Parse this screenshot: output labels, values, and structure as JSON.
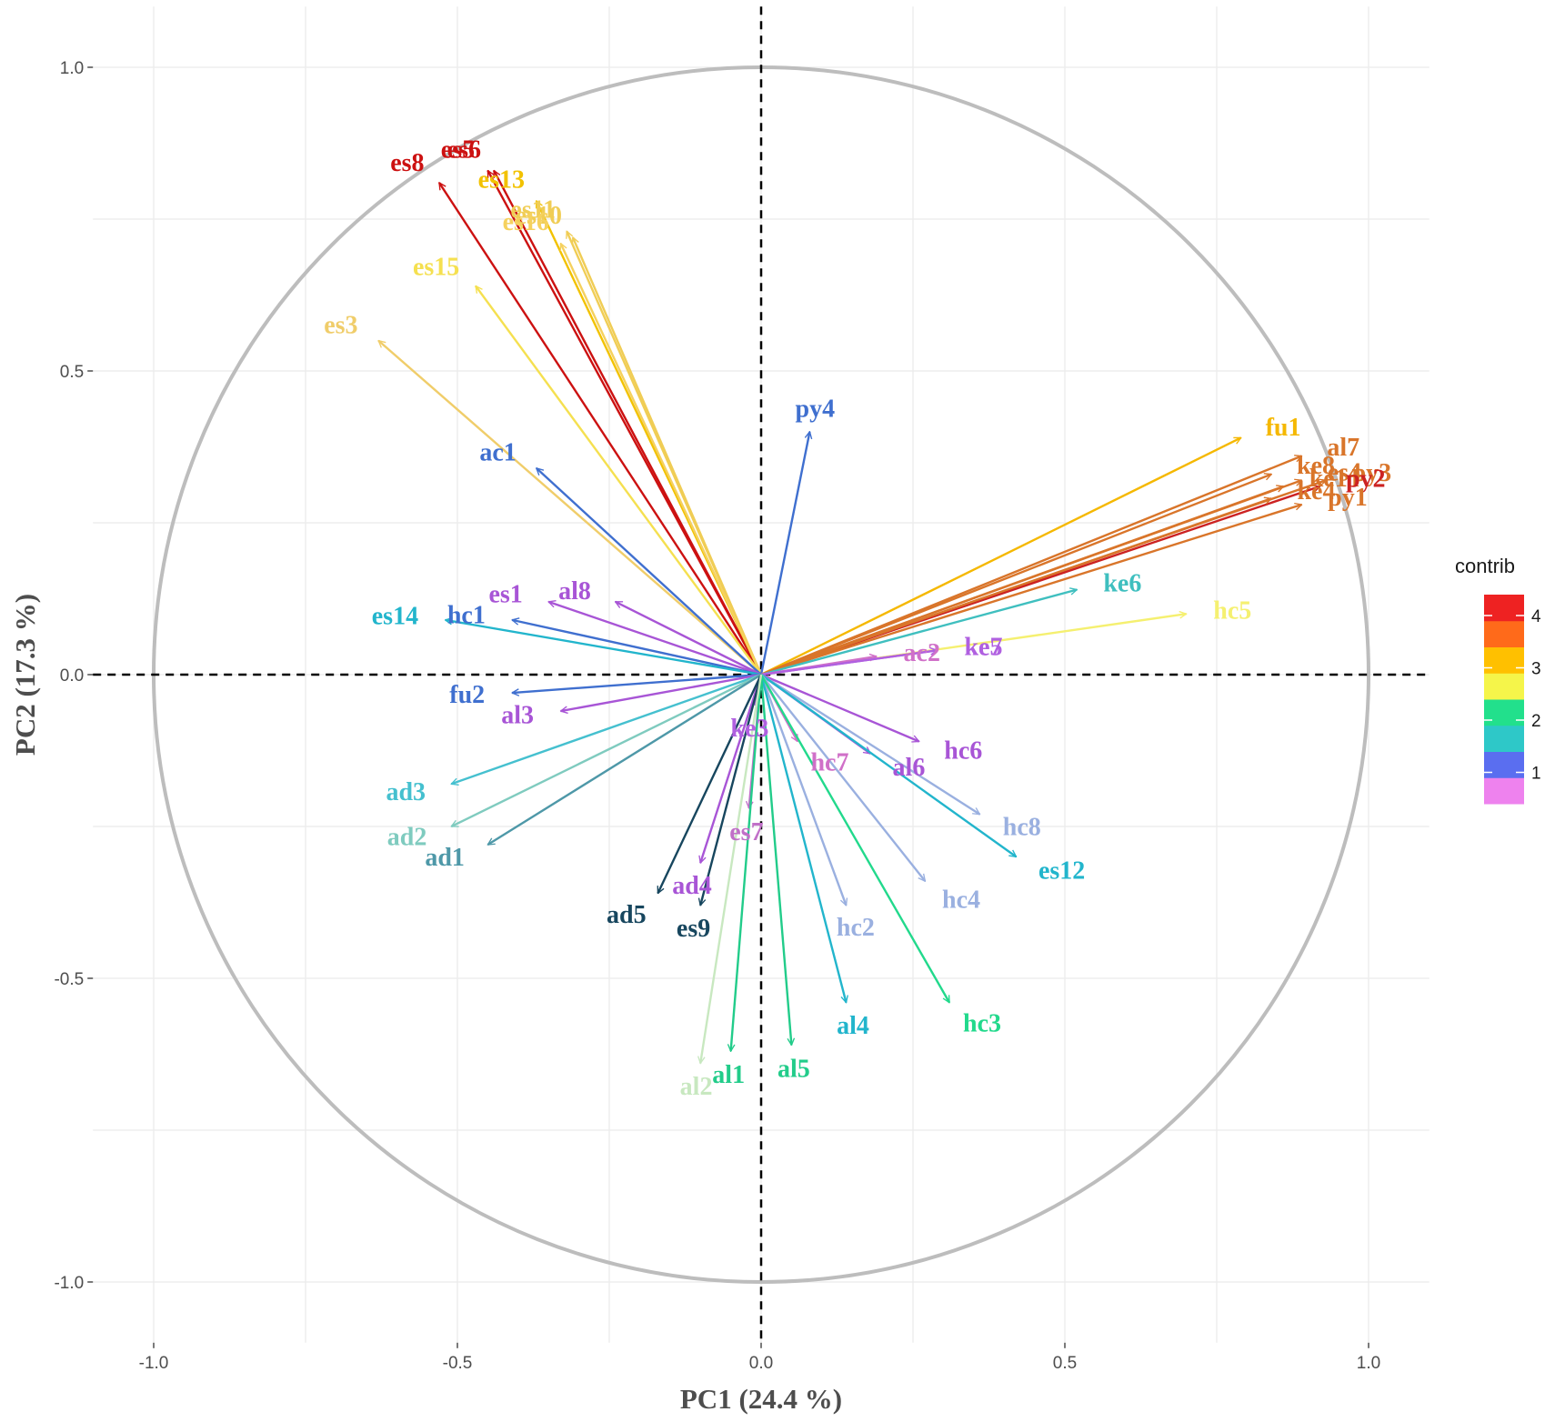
{
  "chart_data": {
    "type": "pca_correlation_circle",
    "xlabel": "PC1 (24.4 %)",
    "ylabel": "PC2 (17.3 %)",
    "xlim": [
      -1.1,
      1.1
    ],
    "ylim": [
      -1.1,
      1.1
    ],
    "x_ticks": [
      -1.0,
      -0.5,
      0.0,
      0.5,
      1.0
    ],
    "y_ticks": [
      -1.0,
      -0.5,
      0.0,
      0.5,
      1.0
    ],
    "x_tick_labels": [
      "-1.0",
      "-0.5",
      "0.0",
      "0.5",
      "1.0"
    ],
    "y_tick_labels": [
      "-1.0",
      "-0.5",
      "0.0",
      "0.5",
      "1.0"
    ],
    "grid": true,
    "legend": {
      "title": "contrib",
      "position": "right",
      "range": [
        0.4,
        4.4
      ],
      "ticks": [
        1,
        2,
        3,
        4
      ],
      "tick_labels": [
        "1",
        "2",
        "3",
        "4"
      ],
      "palette": [
        "#ee82ee",
        "#5a6ef0",
        "#2ec8c8",
        "#22e08c",
        "#f5f54a",
        "#ffc000",
        "#ff6a1a",
        "#ee2222"
      ]
    },
    "variables": [
      {
        "name": "es8",
        "x": -0.53,
        "y": 0.81,
        "color": "#cc1111"
      },
      {
        "name": "es5",
        "x": -0.45,
        "y": 0.83,
        "color": "#cc1111"
      },
      {
        "name": "es6",
        "x": -0.44,
        "y": 0.83,
        "color": "#cc1111"
      },
      {
        "name": "es13",
        "x": -0.37,
        "y": 0.78,
        "color": "#f2c200"
      },
      {
        "name": "es11",
        "x": -0.32,
        "y": 0.73,
        "color": "#f0cd55"
      },
      {
        "name": "es10",
        "x": -0.31,
        "y": 0.72,
        "color": "#f0cd55"
      },
      {
        "name": "es16",
        "x": -0.33,
        "y": 0.71,
        "color": "#f5d15e"
      },
      {
        "name": "es15",
        "x": -0.47,
        "y": 0.64,
        "color": "#f5e050"
      },
      {
        "name": "es3",
        "x": -0.63,
        "y": 0.55,
        "color": "#f0cd6a"
      },
      {
        "name": "py4",
        "x": 0.08,
        "y": 0.4,
        "color": "#3f6fcf"
      },
      {
        "name": "ac1",
        "x": -0.37,
        "y": 0.34,
        "color": "#3f6fcf"
      },
      {
        "name": "fu1",
        "x": 0.79,
        "y": 0.39,
        "color": "#f5b800"
      },
      {
        "name": "al7",
        "x": 0.89,
        "y": 0.36,
        "color": "#d9752a"
      },
      {
        "name": "ke8",
        "x": 0.84,
        "y": 0.33,
        "color": "#d9752a"
      },
      {
        "name": "es4",
        "x": 0.89,
        "y": 0.32,
        "color": "#d9752a"
      },
      {
        "name": "ke1",
        "x": 0.86,
        "y": 0.31,
        "color": "#d9752a"
      },
      {
        "name": "py3",
        "x": 0.93,
        "y": 0.32,
        "color": "#d9752a"
      },
      {
        "name": "py2",
        "x": 0.92,
        "y": 0.31,
        "color": "#cc2222"
      },
      {
        "name": "ke4",
        "x": 0.84,
        "y": 0.29,
        "color": "#d9752a"
      },
      {
        "name": "py1",
        "x": 0.89,
        "y": 0.28,
        "color": "#d9752a"
      },
      {
        "name": "ke6",
        "x": 0.52,
        "y": 0.14,
        "color": "#3fbfbf"
      },
      {
        "name": "hc5",
        "x": 0.7,
        "y": 0.1,
        "color": "#f5f070"
      },
      {
        "name": "es1",
        "x": -0.35,
        "y": 0.12,
        "color": "#a855d6"
      },
      {
        "name": "al8",
        "x": -0.24,
        "y": 0.12,
        "color": "#a855d6"
      },
      {
        "name": "hc1",
        "x": -0.41,
        "y": 0.09,
        "color": "#3f6fcf"
      },
      {
        "name": "es14",
        "x": -0.52,
        "y": 0.09,
        "color": "#22b5cc"
      },
      {
        "name": "ke7",
        "x": 0.29,
        "y": 0.04,
        "color": "#b060e0"
      },
      {
        "name": "ac2",
        "x": 0.19,
        "y": 0.03,
        "color": "#d070c8"
      },
      {
        "name": "ke5",
        "x": 0.29,
        "y": 0.04,
        "color": "#b060e0"
      },
      {
        "name": "fu2",
        "x": -0.41,
        "y": -0.03,
        "color": "#3f6fcf"
      },
      {
        "name": "al3",
        "x": -0.33,
        "y": -0.06,
        "color": "#a855d6"
      },
      {
        "name": "ke3",
        "x": -0.01,
        "y": -0.05,
        "color": "#b060e0"
      },
      {
        "name": "hc6",
        "x": 0.26,
        "y": -0.11,
        "color": "#a855d6"
      },
      {
        "name": "hc7",
        "x": 0.06,
        "y": -0.11,
        "color": "#d070c8"
      },
      {
        "name": "al6",
        "x": 0.18,
        "y": -0.13,
        "color": "#a855d6"
      },
      {
        "name": "hc8",
        "x": 0.36,
        "y": -0.23,
        "color": "#9ab0e0"
      },
      {
        "name": "ad3",
        "x": -0.51,
        "y": -0.18,
        "color": "#45c0cf"
      },
      {
        "name": "ad2",
        "x": -0.51,
        "y": -0.25,
        "color": "#7fcbbf"
      },
      {
        "name": "ad1",
        "x": -0.45,
        "y": -0.28,
        "color": "#4e98a8"
      },
      {
        "name": "es7",
        "x": -0.02,
        "y": -0.22,
        "color": "#c070c8"
      },
      {
        "name": "es12",
        "x": 0.42,
        "y": -0.3,
        "color": "#22b5cc"
      },
      {
        "name": "hc4",
        "x": 0.27,
        "y": -0.34,
        "color": "#9ab0e0"
      },
      {
        "name": "ad4",
        "x": -0.1,
        "y": -0.31,
        "color": "#a855d6"
      },
      {
        "name": "ad5",
        "x": -0.17,
        "y": -0.36,
        "color": "#17465e"
      },
      {
        "name": "es9",
        "x": -0.1,
        "y": -0.38,
        "color": "#17465e"
      },
      {
        "name": "hc2",
        "x": 0.14,
        "y": -0.38,
        "color": "#9ab0e0"
      },
      {
        "name": "al4",
        "x": 0.14,
        "y": -0.54,
        "color": "#22b5cc"
      },
      {
        "name": "hc3",
        "x": 0.31,
        "y": -0.54,
        "color": "#22d98c"
      },
      {
        "name": "al1",
        "x": -0.05,
        "y": -0.62,
        "color": "#22cc8a"
      },
      {
        "name": "al5",
        "x": 0.05,
        "y": -0.61,
        "color": "#22cc8a"
      },
      {
        "name": "al2",
        "x": -0.1,
        "y": -0.64,
        "color": "#c8e8c0"
      }
    ]
  }
}
